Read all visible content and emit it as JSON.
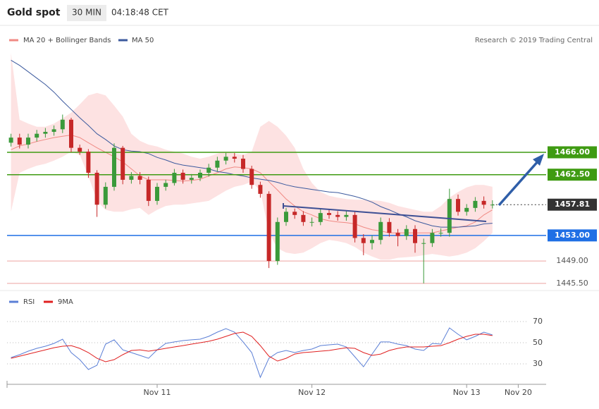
{
  "header": {
    "title": "Gold spot",
    "interval": "30 MIN",
    "time": "04:18:48 CET"
  },
  "chart_data": [
    {
      "type": "candlestick",
      "source": "Research © 2019 Trading Central",
      "up_color": "#3a9a3a",
      "down_color": "#c62828",
      "ylim": [
        1444.6,
        1482.1
      ],
      "open": [
        1467.5,
        1468.3,
        1467.2,
        1468.3,
        1468.9,
        1469.2,
        1469.6,
        1471.1,
        1466.7,
        1466.1,
        1462.8,
        1457.8,
        1460.6,
        1466.7,
        1461.7,
        1462.3,
        1461.7,
        1458.4,
        1460.6,
        1461.2,
        1462.8,
        1461.7,
        1462.0,
        1462.8,
        1463.6,
        1464.7,
        1465.3,
        1465.0,
        1463.4,
        1460.9,
        1459.5,
        1449.0,
        1455.1,
        1456.7,
        1456.2,
        1455.1,
        1455.1,
        1456.5,
        1456.2,
        1455.9,
        1456.2,
        1452.6,
        1451.8,
        1452.3,
        1455.1,
        1453.4,
        1452.9,
        1454.0,
        1451.8,
        1451.8,
        1453.4,
        1453.4,
        1458.7,
        1456.7,
        1457.3,
        1458.4,
        1457.8
      ],
      "high": [
        1468.9,
        1468.9,
        1468.9,
        1469.5,
        1469.8,
        1470.2,
        1471.9,
        1471.4,
        1467.2,
        1466.5,
        1463.2,
        1461.3,
        1467.4,
        1467.0,
        1462.9,
        1462.9,
        1462.2,
        1461.2,
        1461.7,
        1463.4,
        1463.3,
        1462.6,
        1463.3,
        1464.2,
        1465.3,
        1465.9,
        1465.9,
        1465.6,
        1463.9,
        1461.4,
        1459.9,
        1455.8,
        1457.3,
        1457.2,
        1456.8,
        1455.8,
        1457.1,
        1457.1,
        1456.8,
        1456.8,
        1456.8,
        1453.2,
        1453.0,
        1455.8,
        1455.7,
        1454.0,
        1454.6,
        1454.6,
        1452.5,
        1454.0,
        1454.1,
        1460.3,
        1459.4,
        1457.9,
        1459.0,
        1459.1,
        1458.5
      ],
      "low": [
        1466.9,
        1466.6,
        1466.6,
        1467.7,
        1468.3,
        1468.6,
        1469.0,
        1466.0,
        1465.6,
        1462.0,
        1455.9,
        1457.2,
        1460.0,
        1461.0,
        1461.1,
        1461.0,
        1457.6,
        1457.8,
        1460.0,
        1460.8,
        1461.1,
        1461.1,
        1461.5,
        1462.2,
        1463.0,
        1464.1,
        1464.4,
        1462.8,
        1460.3,
        1458.9,
        1447.9,
        1448.4,
        1454.5,
        1455.6,
        1454.5,
        1454.4,
        1454.6,
        1455.6,
        1455.3,
        1455.3,
        1451.9,
        1449.9,
        1450.8,
        1451.6,
        1452.8,
        1451.3,
        1452.3,
        1450.3,
        1445.5,
        1451.2,
        1452.8,
        1452.8,
        1456.1,
        1456.1,
        1456.7,
        1457.2,
        1457.2
      ],
      "close": [
        1468.3,
        1467.2,
        1468.3,
        1468.9,
        1469.2,
        1469.6,
        1471.1,
        1466.7,
        1466.1,
        1462.8,
        1457.8,
        1460.6,
        1466.7,
        1461.7,
        1462.3,
        1461.7,
        1458.4,
        1460.6,
        1461.2,
        1462.8,
        1461.7,
        1462.0,
        1462.8,
        1463.6,
        1464.7,
        1465.3,
        1465.0,
        1463.4,
        1460.9,
        1459.5,
        1449.0,
        1455.1,
        1456.7,
        1456.2,
        1455.1,
        1455.1,
        1456.5,
        1456.2,
        1455.9,
        1456.2,
        1452.6,
        1451.8,
        1452.3,
        1455.1,
        1453.4,
        1452.9,
        1454.0,
        1451.8,
        1451.8,
        1453.4,
        1453.4,
        1458.7,
        1456.7,
        1457.3,
        1458.4,
        1457.8,
        1457.81
      ],
      "series": [
        {
          "name": "MA 20 + Bollinger Bands",
          "color": "#f08a84",
          "band_color": "#fde2e2",
          "values": [
            1466.4,
            1467.0,
            1467.3,
            1467.7,
            1468.0,
            1468.3,
            1468.5,
            1468.7,
            1468.3,
            1467.5,
            1466.7,
            1466.0,
            1465.3,
            1464.5,
            1463.4,
            1462.3,
            1461.7,
            1461.7,
            1461.7,
            1461.6,
            1461.5,
            1461.6,
            1461.8,
            1462.3,
            1462.8,
            1463.4,
            1463.7,
            1463.6,
            1463.4,
            1462.8,
            1461.4,
            1460.1,
            1458.7,
            1457.6,
            1456.7,
            1456.2,
            1455.6,
            1455.3,
            1455.1,
            1455.0,
            1454.8,
            1454.3,
            1453.9,
            1453.7,
            1453.4,
            1453.4,
            1453.4,
            1453.4,
            1453.4,
            1453.4,
            1453.7,
            1454.0,
            1454.3,
            1454.5,
            1455.1,
            1456.2,
            1457.0
          ],
          "upper": [
            1481.5,
            1471.1,
            1470.5,
            1470.0,
            1470.0,
            1470.5,
            1471.3,
            1472.2,
            1473.5,
            1474.9,
            1475.3,
            1474.9,
            1473.3,
            1471.6,
            1468.9,
            1467.8,
            1467.2,
            1466.9,
            1466.4,
            1466.1,
            1465.8,
            1465.3,
            1465.0,
            1465.3,
            1465.8,
            1466.1,
            1465.8,
            1465.6,
            1466.1,
            1470.0,
            1470.9,
            1470.0,
            1468.6,
            1466.7,
            1463.4,
            1461.2,
            1459.8,
            1459.2,
            1458.9,
            1458.7,
            1458.6,
            1458.6,
            1458.5,
            1458.4,
            1458.1,
            1457.6,
            1457.3,
            1457.0,
            1456.7,
            1456.7,
            1457.6,
            1458.9,
            1459.8,
            1460.5,
            1460.9,
            1460.9,
            1460.6
          ],
          "lower": [
            1456.7,
            1462.8,
            1463.4,
            1463.9,
            1464.2,
            1464.7,
            1465.3,
            1466.1,
            1465.6,
            1462.3,
            1458.4,
            1457.0,
            1456.7,
            1456.7,
            1457.1,
            1457.3,
            1456.2,
            1457.0,
            1457.6,
            1457.8,
            1457.8,
            1458.0,
            1458.2,
            1458.4,
            1459.2,
            1460.0,
            1460.6,
            1460.9,
            1461.4,
            1460.0,
            1453.4,
            1451.0,
            1450.3,
            1450.1,
            1450.3,
            1451.0,
            1451.8,
            1452.3,
            1452.1,
            1451.8,
            1451.2,
            1450.3,
            1449.7,
            1449.2,
            1449.2,
            1449.5,
            1449.6,
            1449.7,
            1449.9,
            1450.1,
            1449.9,
            1449.7,
            1449.9,
            1450.3,
            1451.0,
            1452.1,
            1453.4
          ]
        },
        {
          "name": "MA 50",
          "color": "#3c5a9e",
          "values": [
            1480.4,
            1479.6,
            1478.6,
            1477.6,
            1476.6,
            1475.4,
            1474.0,
            1472.7,
            1471.4,
            1470.2,
            1468.9,
            1468.0,
            1467.0,
            1466.4,
            1466.2,
            1466.1,
            1465.8,
            1465.2,
            1464.8,
            1464.3,
            1464.0,
            1463.8,
            1463.6,
            1463.4,
            1463.0,
            1462.8,
            1462.5,
            1462.3,
            1462.0,
            1461.8,
            1461.6,
            1461.3,
            1460.9,
            1460.6,
            1460.4,
            1460.2,
            1460.0,
            1459.8,
            1459.7,
            1459.4,
            1459.1,
            1458.7,
            1458.2,
            1457.5,
            1457.0,
            1456.4,
            1455.9,
            1455.3,
            1454.9,
            1454.5,
            1454.3,
            1454.3,
            1454.3,
            1454.4,
            1454.5,
            1454.8,
            1454.9
          ]
        }
      ],
      "levels": [
        {
          "value": 1466.0,
          "label": "1466.00",
          "color": "#3f9b12",
          "style": "box",
          "line": "solid"
        },
        {
          "value": 1462.5,
          "label": "1462.50",
          "color": "#3f9b12",
          "style": "box",
          "line": "solid"
        },
        {
          "value": 1457.81,
          "label": "1457.81",
          "color": "#333333",
          "style": "box",
          "line": "dotted"
        },
        {
          "value": 1453.0,
          "label": "1453.00",
          "color": "#1f6fe5",
          "style": "box",
          "line": "solid"
        },
        {
          "value": 1449.0,
          "label": "1449.00",
          "color": "#eea3a0",
          "style": "text",
          "line": "solid"
        },
        {
          "value": 1445.5,
          "label": "1445.50",
          "color": "#eea3a0",
          "style": "text",
          "line": "solid"
        }
      ]
    },
    {
      "type": "line",
      "categories": [
        null,
        null,
        null,
        null,
        null,
        null,
        null,
        null,
        null,
        null,
        null,
        null,
        null,
        null,
        null,
        null,
        null,
        "Nov 11",
        null,
        null,
        null,
        null,
        null,
        null,
        null,
        null,
        null,
        null,
        null,
        null,
        null,
        null,
        null,
        null,
        null,
        "Nov 12",
        null,
        null,
        null,
        null,
        null,
        null,
        null,
        null,
        null,
        null,
        null,
        null,
        null,
        null,
        null,
        null,
        null,
        "Nov 13",
        null,
        null,
        null,
        null,
        null,
        "Nov 20"
      ],
      "ylim": [
        10.7,
        87.3
      ],
      "yticks": [
        70,
        50,
        30
      ],
      "grid": true,
      "series": [
        {
          "name": "RSI",
          "color": "#5b7fd6",
          "values": [
            36.0,
            38.7,
            42.0,
            44.7,
            46.7,
            49.3,
            53.3,
            40.7,
            34.0,
            24.7,
            28.7,
            48.7,
            52.7,
            43.3,
            40.7,
            38.0,
            35.3,
            43.3,
            49.3,
            50.7,
            52.0,
            52.7,
            53.3,
            56.0,
            60.0,
            63.3,
            60.0,
            50.7,
            40.7,
            17.3,
            35.3,
            40.7,
            42.7,
            40.7,
            42.7,
            44.0,
            47.3,
            48.0,
            48.7,
            46.0,
            36.7,
            27.3,
            39.3,
            50.7,
            50.7,
            48.7,
            47.3,
            44.0,
            42.7,
            49.3,
            48.7,
            64.0,
            58.0,
            52.7,
            56.0,
            60.0,
            57.3,
            null,
            null,
            null
          ]
        },
        {
          "name": "9MA",
          "color": "#e02020",
          "values": [
            35.3,
            37.3,
            39.3,
            41.3,
            43.3,
            45.3,
            46.7,
            47.3,
            44.7,
            40.7,
            35.3,
            32.0,
            34.0,
            38.7,
            42.7,
            43.3,
            42.0,
            43.3,
            44.7,
            46.0,
            47.3,
            48.7,
            50.0,
            51.3,
            53.3,
            56.0,
            58.7,
            60.0,
            56.0,
            47.3,
            37.3,
            32.7,
            35.3,
            39.3,
            40.7,
            41.3,
            42.0,
            42.7,
            44.0,
            45.3,
            44.7,
            40.7,
            38.0,
            39.3,
            42.7,
            44.7,
            46.0,
            46.0,
            46.0,
            46.7,
            47.3,
            50.0,
            53.3,
            56.0,
            58.0,
            58.0,
            56.7,
            null,
            null,
            null
          ]
        }
      ]
    }
  ]
}
